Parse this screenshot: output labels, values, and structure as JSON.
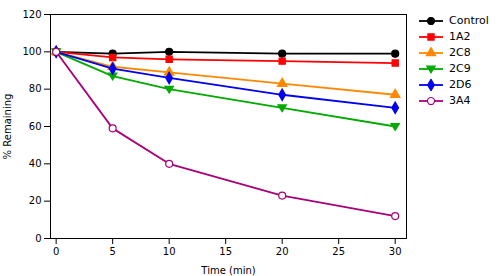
{
  "chart_data": {
    "type": "line",
    "x": [
      0,
      5,
      10,
      20,
      30
    ],
    "xlabel": "Time (min)",
    "ylabel": "% Remaining",
    "xlim": [
      -0.5,
      31
    ],
    "xticks": [
      0,
      5,
      10,
      15,
      20,
      25,
      30
    ],
    "ylim": [
      0,
      120
    ],
    "yticks": [
      0,
      20,
      40,
      60,
      80,
      100,
      120
    ],
    "grid": false,
    "legend": "right",
    "series": [
      {
        "name": "Control",
        "color": "#000000",
        "marker": "circle",
        "line_style": "solid",
        "values": [
          100,
          99,
          100,
          99,
          99
        ],
        "errors": [
          0.5,
          0.5,
          0.5,
          0.5,
          0.5
        ]
      },
      {
        "name": "1A2",
        "color": "#ff0000",
        "marker": "square",
        "line_style": "solid",
        "values": [
          100,
          97,
          96,
          95,
          94
        ],
        "errors": [
          0.5,
          0.5,
          0.5,
          0.5,
          0.8
        ]
      },
      {
        "name": "2C8",
        "color": "#ff8800",
        "marker": "triangle",
        "line_style": "solid",
        "values": [
          100,
          92,
          89,
          83,
          77
        ],
        "errors": [
          0.5,
          0.5,
          0.5,
          0.5,
          0.8
        ]
      },
      {
        "name": "2C9",
        "color": "#00aa00",
        "marker": "triangle-down",
        "line_style": "solid",
        "values": [
          100,
          87,
          80,
          70,
          60
        ],
        "errors": [
          0.5,
          0.5,
          0.5,
          0.8,
          0.5
        ]
      },
      {
        "name": "2D6",
        "color": "#0000ee",
        "marker": "diamond",
        "line_style": "solid",
        "values": [
          100,
          91,
          86,
          77,
          70
        ],
        "errors": [
          0.5,
          0.5,
          0.5,
          0.5,
          0.5
        ]
      },
      {
        "name": "3A4",
        "color": "#aa0077",
        "marker": "circle-open",
        "line_style": "solid",
        "values": [
          100,
          59,
          40,
          23,
          12
        ],
        "errors": [
          0.5,
          1.5,
          1.5,
          1.0,
          0.8
        ]
      }
    ]
  }
}
